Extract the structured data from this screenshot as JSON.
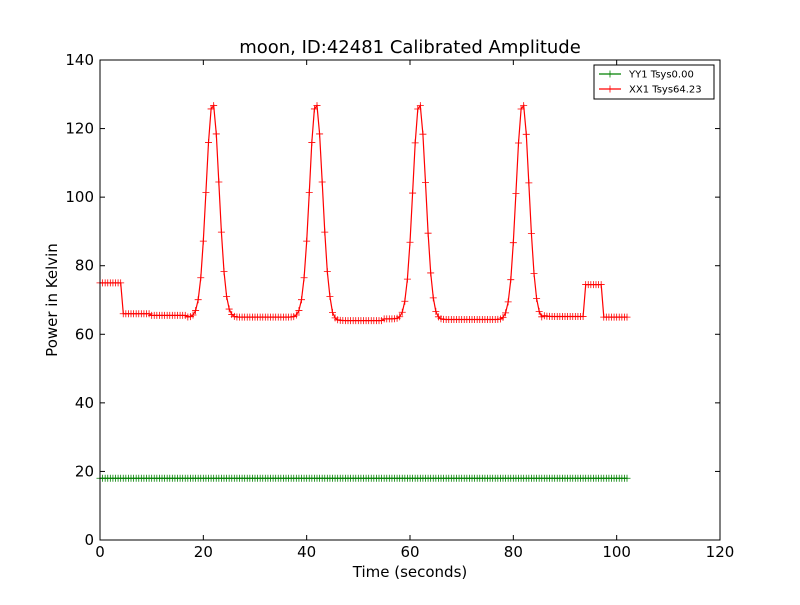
{
  "chart_data": {
    "type": "line",
    "title": "moon, ID:42481 Calibrated Amplitude",
    "xlabel": "Time (seconds)",
    "ylabel": "Power in Kelvin",
    "xlim": [
      0,
      120
    ],
    "ylim": [
      0,
      140
    ],
    "x_ticks": [
      0,
      20,
      40,
      60,
      80,
      100,
      120
    ],
    "y_ticks": [
      0,
      20,
      40,
      60,
      80,
      100,
      120,
      140
    ],
    "grid": false,
    "legend_position": "top-right",
    "marker": "+",
    "series": [
      {
        "name": "YY1 Tsys0.00",
        "color": "#008000",
        "x_start": 0,
        "x_end": 102,
        "x_step": 0.5,
        "baseline": 18,
        "segments": [],
        "peaks": []
      },
      {
        "name": "XX1 Tsys64.23",
        "color": "#ff0000",
        "x_start": 0,
        "x_end": 102,
        "x_step": 0.5,
        "baseline": 65,
        "segments": [
          {
            "x0": 0,
            "x1": 4.2,
            "value": 75
          },
          {
            "x0": 4.2,
            "x1": 10,
            "value": 66
          },
          {
            "x0": 10,
            "x1": 17,
            "value": 65.5
          },
          {
            "x0": 17,
            "x1": 45,
            "value": 65
          },
          {
            "x0": 45,
            "x1": 55,
            "value": 64
          },
          {
            "x0": 55,
            "x1": 65,
            "value": 64.5
          },
          {
            "x0": 65,
            "x1": 86,
            "value": 64.3
          },
          {
            "x0": 86,
            "x1": 93.8,
            "value": 65.2
          },
          {
            "x0": 93.8,
            "x1": 97.5,
            "value": 74.5
          },
          {
            "x0": 97.5,
            "x1": 102,
            "value": 65
          }
        ],
        "peaks": [
          {
            "center": 21.8,
            "height": 127.5,
            "sigma": 1.25
          },
          {
            "center": 41.8,
            "height": 127.5,
            "sigma": 1.25
          },
          {
            "center": 61.8,
            "height": 127.5,
            "sigma": 1.25
          },
          {
            "center": 81.8,
            "height": 127.5,
            "sigma": 1.25
          }
        ]
      }
    ]
  }
}
